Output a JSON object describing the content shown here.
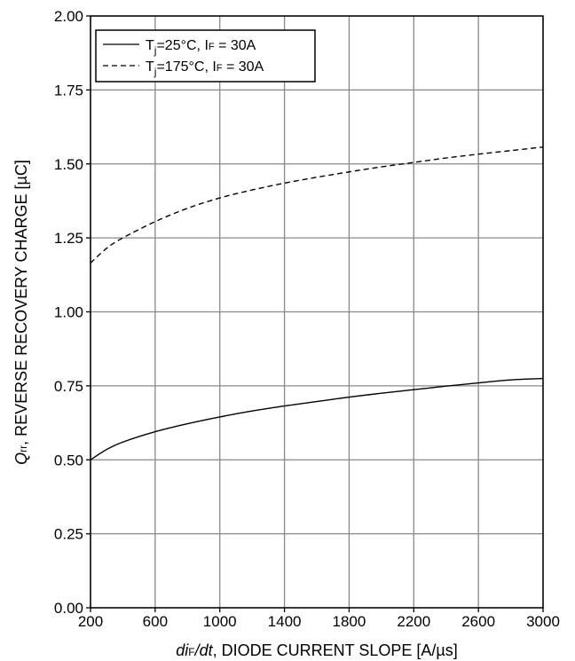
{
  "chart_data": {
    "type": "line",
    "title": "",
    "xlabel": {
      "italic": "di",
      "sub": "F",
      "italic2": "/dt",
      "rest": ", DIODE CURRENT SLOPE [A/µs]"
    },
    "ylabel": {
      "italic": "Q",
      "sub": "rr",
      "rest": ", REVERSE RECOVERY CHARGE [µC]"
    },
    "xlim": [
      200,
      3000
    ],
    "ylim": [
      0,
      2.0
    ],
    "x_ticks": [
      200,
      600,
      1000,
      1400,
      1800,
      2200,
      2600,
      3000
    ],
    "y_ticks": [
      0,
      0.25,
      0.5,
      0.75,
      1.0,
      1.25,
      1.5,
      1.75,
      2.0
    ],
    "x_tick_labels": [
      "200",
      "600",
      "1000",
      "1400",
      "1800",
      "2200",
      "2600",
      "3000"
    ],
    "y_tick_labels": [
      "0.00",
      "0.25",
      "0.50",
      "0.75",
      "1.00",
      "1.25",
      "1.50",
      "1.75",
      "2.00"
    ],
    "grid": true,
    "legend_position": "top-left",
    "series": [
      {
        "legend": {
          "a": "T",
          "a_sub": "j",
          "b": "=25°C, I",
          "b_sub": "F",
          "c": " = 30A"
        },
        "style": "solid",
        "color": "#000000",
        "x": [
          200,
          300,
          400,
          600,
          800,
          1000,
          1200,
          1400,
          1600,
          1800,
          2000,
          2200,
          2400,
          2600,
          2800,
          3000
        ],
        "y": [
          0.5,
          0.535,
          0.56,
          0.595,
          0.622,
          0.645,
          0.665,
          0.682,
          0.697,
          0.712,
          0.725,
          0.737,
          0.749,
          0.76,
          0.77,
          0.775
        ]
      },
      {
        "legend": {
          "a": "T",
          "a_sub": "j",
          "b": "=175°C, I",
          "b_sub": "F",
          "c": " = 30A"
        },
        "style": "dashed",
        "color": "#000000",
        "x": [
          200,
          300,
          400,
          600,
          800,
          1000,
          1200,
          1400,
          1600,
          1800,
          2000,
          2200,
          2400,
          2600,
          2800,
          3000
        ],
        "y": [
          1.165,
          1.215,
          1.25,
          1.305,
          1.35,
          1.385,
          1.412,
          1.435,
          1.455,
          1.473,
          1.49,
          1.505,
          1.52,
          1.533,
          1.545,
          1.557
        ]
      }
    ]
  }
}
